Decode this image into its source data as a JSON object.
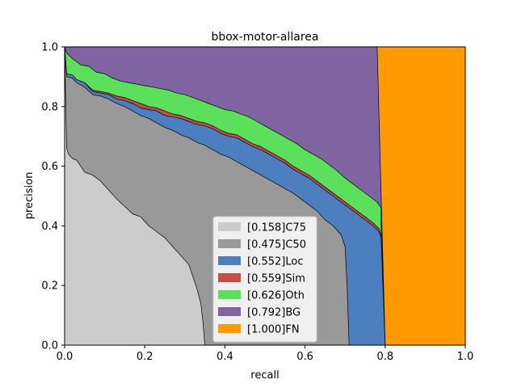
{
  "chart_data": {
    "type": "area",
    "title": "bbox-motor-allarea",
    "xlabel": "recall",
    "ylabel": "precision",
    "xlim": [
      0,
      1
    ],
    "ylim": [
      0,
      1
    ],
    "xticks": [
      "0.0",
      "0.2",
      "0.4",
      "0.6",
      "0.8",
      "1.0"
    ],
    "yticks": [
      "0.0",
      "0.2",
      "0.4",
      "0.6",
      "0.8",
      "1.0"
    ],
    "grid": false,
    "legend_position": "lower-center",
    "series": [
      {
        "name": "[0.158]C75",
        "color": "#cccccc",
        "points": [
          [
            0,
            1.0
          ],
          [
            0.005,
            0.66
          ],
          [
            0.01,
            0.64
          ],
          [
            0.02,
            0.625
          ],
          [
            0.03,
            0.62
          ],
          [
            0.04,
            0.6
          ],
          [
            0.05,
            0.58
          ],
          [
            0.07,
            0.57
          ],
          [
            0.09,
            0.55
          ],
          [
            0.11,
            0.52
          ],
          [
            0.13,
            0.49
          ],
          [
            0.15,
            0.465
          ],
          [
            0.17,
            0.44
          ],
          [
            0.19,
            0.43
          ],
          [
            0.21,
            0.4
          ],
          [
            0.23,
            0.38
          ],
          [
            0.25,
            0.36
          ],
          [
            0.27,
            0.33
          ],
          [
            0.29,
            0.3
          ],
          [
            0.31,
            0.27
          ],
          [
            0.32,
            0.23
          ],
          [
            0.33,
            0.19
          ],
          [
            0.34,
            0.14
          ],
          [
            0.345,
            0.08
          ],
          [
            0.35,
            0.0
          ]
        ]
      },
      {
        "name": "[0.475]C50",
        "color": "#999999",
        "points": [
          [
            0,
            1.0
          ],
          [
            0.005,
            0.9
          ],
          [
            0.02,
            0.895
          ],
          [
            0.03,
            0.88
          ],
          [
            0.05,
            0.865
          ],
          [
            0.07,
            0.84
          ],
          [
            0.09,
            0.835
          ],
          [
            0.11,
            0.825
          ],
          [
            0.13,
            0.81
          ],
          [
            0.15,
            0.8
          ],
          [
            0.17,
            0.785
          ],
          [
            0.19,
            0.77
          ],
          [
            0.21,
            0.76
          ],
          [
            0.23,
            0.745
          ],
          [
            0.25,
            0.73
          ],
          [
            0.27,
            0.72
          ],
          [
            0.29,
            0.705
          ],
          [
            0.31,
            0.695
          ],
          [
            0.33,
            0.68
          ],
          [
            0.35,
            0.67
          ],
          [
            0.37,
            0.655
          ],
          [
            0.39,
            0.64
          ],
          [
            0.41,
            0.63
          ],
          [
            0.43,
            0.615
          ],
          [
            0.45,
            0.6
          ],
          [
            0.47,
            0.585
          ],
          [
            0.49,
            0.57
          ],
          [
            0.51,
            0.555
          ],
          [
            0.53,
            0.54
          ],
          [
            0.55,
            0.525
          ],
          [
            0.57,
            0.51
          ],
          [
            0.59,
            0.49
          ],
          [
            0.61,
            0.47
          ],
          [
            0.63,
            0.45
          ],
          [
            0.65,
            0.42
          ],
          [
            0.67,
            0.4
          ],
          [
            0.69,
            0.37
          ],
          [
            0.7,
            0.33
          ],
          [
            0.705,
            0.2
          ],
          [
            0.71,
            0.0
          ]
        ]
      },
      {
        "name": "[0.552]Loc",
        "color": "#4c7fbf",
        "points": [
          [
            0,
            1.0
          ],
          [
            0.005,
            0.91
          ],
          [
            0.02,
            0.905
          ],
          [
            0.03,
            0.89
          ],
          [
            0.05,
            0.88
          ],
          [
            0.07,
            0.85
          ],
          [
            0.09,
            0.845
          ],
          [
            0.11,
            0.84
          ],
          [
            0.13,
            0.825
          ],
          [
            0.15,
            0.82
          ],
          [
            0.17,
            0.81
          ],
          [
            0.19,
            0.795
          ],
          [
            0.21,
            0.79
          ],
          [
            0.23,
            0.785
          ],
          [
            0.25,
            0.77
          ],
          [
            0.27,
            0.765
          ],
          [
            0.29,
            0.76
          ],
          [
            0.31,
            0.75
          ],
          [
            0.33,
            0.74
          ],
          [
            0.35,
            0.735
          ],
          [
            0.37,
            0.725
          ],
          [
            0.39,
            0.71
          ],
          [
            0.41,
            0.7
          ],
          [
            0.43,
            0.695
          ],
          [
            0.45,
            0.68
          ],
          [
            0.47,
            0.665
          ],
          [
            0.49,
            0.655
          ],
          [
            0.51,
            0.64
          ],
          [
            0.53,
            0.625
          ],
          [
            0.55,
            0.61
          ],
          [
            0.57,
            0.59
          ],
          [
            0.59,
            0.575
          ],
          [
            0.61,
            0.56
          ],
          [
            0.63,
            0.54
          ],
          [
            0.65,
            0.52
          ],
          [
            0.67,
            0.5
          ],
          [
            0.69,
            0.48
          ],
          [
            0.71,
            0.46
          ],
          [
            0.73,
            0.44
          ],
          [
            0.75,
            0.42
          ],
          [
            0.77,
            0.4
          ],
          [
            0.785,
            0.38
          ],
          [
            0.79,
            0.36
          ],
          [
            0.8,
            0.0
          ]
        ]
      },
      {
        "name": "[0.559]Sim",
        "color": "#c44e43",
        "points": [
          [
            0,
            1.0
          ],
          [
            0.005,
            0.91
          ],
          [
            0.02,
            0.905
          ],
          [
            0.03,
            0.89
          ],
          [
            0.05,
            0.88
          ],
          [
            0.07,
            0.855
          ],
          [
            0.09,
            0.85
          ],
          [
            0.11,
            0.845
          ],
          [
            0.13,
            0.835
          ],
          [
            0.15,
            0.83
          ],
          [
            0.17,
            0.82
          ],
          [
            0.19,
            0.81
          ],
          [
            0.21,
            0.8
          ],
          [
            0.23,
            0.795
          ],
          [
            0.25,
            0.785
          ],
          [
            0.27,
            0.775
          ],
          [
            0.29,
            0.77
          ],
          [
            0.31,
            0.76
          ],
          [
            0.33,
            0.75
          ],
          [
            0.35,
            0.745
          ],
          [
            0.37,
            0.735
          ],
          [
            0.39,
            0.72
          ],
          [
            0.41,
            0.71
          ],
          [
            0.43,
            0.705
          ],
          [
            0.45,
            0.69
          ],
          [
            0.47,
            0.675
          ],
          [
            0.49,
            0.665
          ],
          [
            0.51,
            0.65
          ],
          [
            0.53,
            0.635
          ],
          [
            0.55,
            0.62
          ],
          [
            0.57,
            0.6
          ],
          [
            0.59,
            0.585
          ],
          [
            0.61,
            0.57
          ],
          [
            0.63,
            0.55
          ],
          [
            0.65,
            0.53
          ],
          [
            0.67,
            0.51
          ],
          [
            0.69,
            0.49
          ],
          [
            0.71,
            0.47
          ],
          [
            0.73,
            0.45
          ],
          [
            0.75,
            0.43
          ],
          [
            0.77,
            0.41
          ],
          [
            0.785,
            0.39
          ],
          [
            0.79,
            0.37
          ],
          [
            0.8,
            0.0
          ]
        ]
      },
      {
        "name": "[0.626]Oth",
        "color": "#5ae05a",
        "points": [
          [
            0,
            1.0
          ],
          [
            0.005,
            0.98
          ],
          [
            0.02,
            0.96
          ],
          [
            0.04,
            0.94
          ],
          [
            0.06,
            0.935
          ],
          [
            0.08,
            0.915
          ],
          [
            0.1,
            0.91
          ],
          [
            0.12,
            0.895
          ],
          [
            0.14,
            0.885
          ],
          [
            0.16,
            0.88
          ],
          [
            0.18,
            0.875
          ],
          [
            0.2,
            0.87
          ],
          [
            0.22,
            0.865
          ],
          [
            0.24,
            0.86
          ],
          [
            0.26,
            0.855
          ],
          [
            0.28,
            0.845
          ],
          [
            0.3,
            0.84
          ],
          [
            0.32,
            0.83
          ],
          [
            0.34,
            0.82
          ],
          [
            0.36,
            0.81
          ],
          [
            0.38,
            0.8
          ],
          [
            0.4,
            0.79
          ],
          [
            0.42,
            0.785
          ],
          [
            0.44,
            0.775
          ],
          [
            0.46,
            0.765
          ],
          [
            0.48,
            0.75
          ],
          [
            0.5,
            0.735
          ],
          [
            0.52,
            0.72
          ],
          [
            0.54,
            0.705
          ],
          [
            0.56,
            0.69
          ],
          [
            0.58,
            0.675
          ],
          [
            0.6,
            0.655
          ],
          [
            0.62,
            0.64
          ],
          [
            0.64,
            0.625
          ],
          [
            0.66,
            0.605
          ],
          [
            0.68,
            0.585
          ],
          [
            0.7,
            0.56
          ],
          [
            0.72,
            0.54
          ],
          [
            0.74,
            0.52
          ],
          [
            0.76,
            0.5
          ],
          [
            0.78,
            0.48
          ],
          [
            0.79,
            0.46
          ],
          [
            0.79,
            0.4
          ],
          [
            0.8,
            0.0
          ]
        ]
      },
      {
        "name": "[0.792]BG",
        "color": "#8064a2",
        "points": [
          [
            0,
            1.0
          ],
          [
            0.78,
            1.0
          ],
          [
            0.79,
            0.5
          ],
          [
            0.8,
            0.0
          ]
        ]
      },
      {
        "name": "[1.000]FN",
        "color": "#fe9900",
        "points": [
          [
            0,
            1.0
          ],
          [
            1.0,
            1.0
          ],
          [
            1.0,
            0.0
          ]
        ]
      }
    ]
  }
}
